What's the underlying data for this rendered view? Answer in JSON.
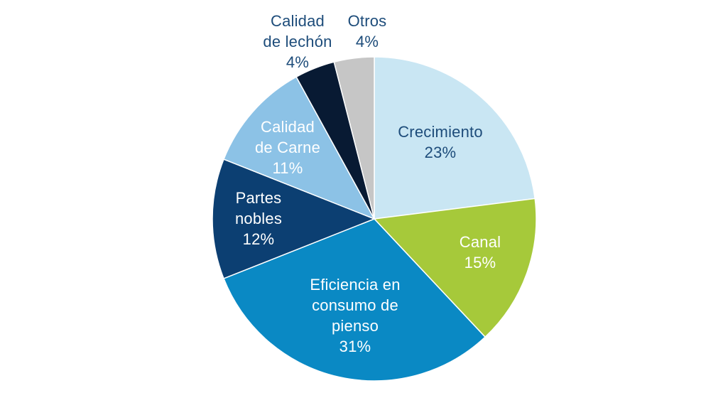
{
  "chart_data": {
    "type": "pie",
    "title": "",
    "start_angle_deg": 0,
    "direction": "clockwise",
    "slices": [
      {
        "label": [
          "Crecimiento"
        ],
        "percent_label": "23%",
        "value": 23,
        "color": "#c9e6f3",
        "text_color": "#1d4c7a"
      },
      {
        "label": [
          "Canal"
        ],
        "percent_label": "15%",
        "value": 15,
        "color": "#a6c93a",
        "text_color": "#ffffff"
      },
      {
        "label": [
          "Eficiencia en",
          "consumo de",
          "pienso"
        ],
        "percent_label": "31%",
        "value": 31,
        "color": "#0a89c4",
        "text_color": "#ffffff"
      },
      {
        "label": [
          "Partes",
          "nobles"
        ],
        "percent_label": "12%",
        "value": 12,
        "color": "#0c3f72",
        "text_color": "#ffffff"
      },
      {
        "label": [
          "Calidad",
          "de Carne"
        ],
        "percent_label": "11%",
        "value": 11,
        "color": "#8cc2e6",
        "text_color": "#ffffff"
      },
      {
        "label": [
          "Calidad",
          "de lechón"
        ],
        "percent_label": "4%",
        "value": 4,
        "color": "#081a33",
        "text_color": "#1d4c7a"
      },
      {
        "label": [
          "Otros"
        ],
        "percent_label": "4%",
        "value": 4,
        "color": "#c6c6c6",
        "text_color": "#1d4c7a"
      }
    ]
  }
}
